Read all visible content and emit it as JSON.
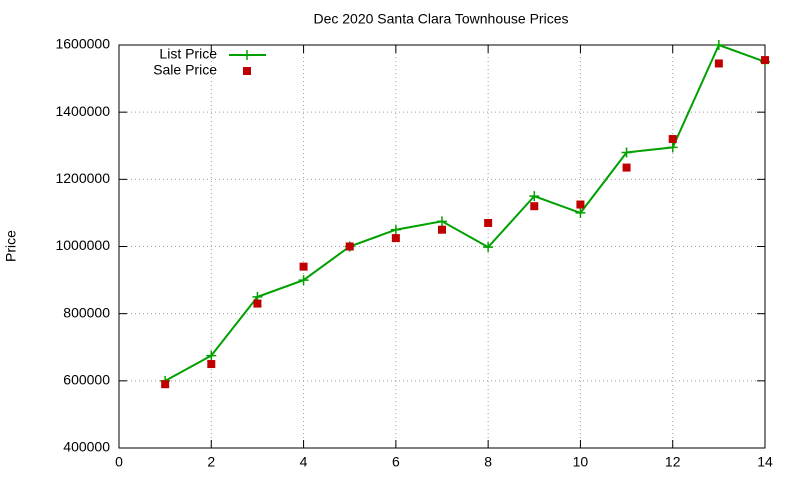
{
  "chart_data": {
    "type": "line",
    "title": "Dec 2020 Santa Clara Townhouse Prices",
    "y_label": "Price",
    "x": [
      1,
      2,
      3,
      4,
      5,
      6,
      7,
      8,
      9,
      10,
      11,
      12,
      13,
      14
    ],
    "series": [
      {
        "name": "List Price",
        "color": "#00a000",
        "mode": "linespoints",
        "values": [
          600000,
          675000,
          850000,
          900000,
          1000000,
          1050000,
          1075000,
          998000,
          1150000,
          1100000,
          1280000,
          1295000,
          1600000,
          1550000
        ]
      },
      {
        "name": "Sale Price",
        "color": "#c00000",
        "mode": "points",
        "values": [
          590000,
          650000,
          830000,
          940000,
          1000000,
          1025000,
          1050000,
          1070000,
          1120000,
          1125000,
          1235000,
          1320000,
          1545000,
          1555000
        ]
      }
    ],
    "xlim": [
      0,
      14
    ],
    "xticks": [
      0,
      2,
      4,
      6,
      8,
      10,
      12,
      14
    ],
    "ylim": [
      400000,
      1600000
    ],
    "yticks": [
      400000,
      600000,
      800000,
      1000000,
      1200000,
      1400000,
      1600000
    ],
    "grid": true,
    "legend": "top-left"
  }
}
